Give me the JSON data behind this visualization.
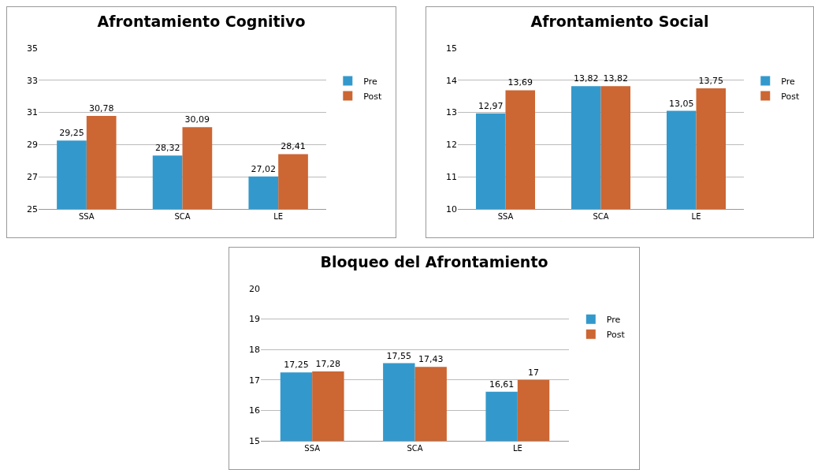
{
  "chart_data": [
    {
      "type": "bar",
      "title": "Afrontamiento Cognitivo",
      "categories": [
        "SSA",
        "SCA",
        "LE"
      ],
      "ylim": [
        25,
        35
      ],
      "yticks": [
        25,
        27,
        29,
        31,
        33,
        35
      ],
      "grid": "y",
      "legend": "right",
      "series": [
        {
          "name": "Pre",
          "color": "#3399cc",
          "values": [
            29.25,
            28.32,
            27.02
          ],
          "value_labels": [
            "29,25",
            "28,32",
            "27,02"
          ]
        },
        {
          "name": "Post",
          "color": "#cc6633",
          "values": [
            30.78,
            30.09,
            28.41
          ],
          "value_labels": [
            "30,78",
            "30,09",
            "28,41"
          ]
        }
      ]
    },
    {
      "type": "bar",
      "title": "Afrontamiento Social",
      "categories": [
        "SSA",
        "SCA",
        "LE"
      ],
      "ylim": [
        10,
        15
      ],
      "yticks": [
        10,
        11,
        12,
        13,
        14,
        15
      ],
      "grid": "y",
      "legend": "right",
      "series": [
        {
          "name": "Pre",
          "color": "#3399cc",
          "values": [
            12.97,
            13.82,
            13.05
          ],
          "value_labels": [
            "12,97",
            "13,82",
            "13,05"
          ]
        },
        {
          "name": "Post",
          "color": "#cc6633",
          "values": [
            13.69,
            13.82,
            13.75
          ],
          "value_labels": [
            "13,69",
            "13,82",
            "13,75"
          ]
        }
      ]
    },
    {
      "type": "bar",
      "title": "Bloqueo del Afrontamiento",
      "categories": [
        "SSA",
        "SCA",
        "LE"
      ],
      "ylim": [
        15,
        20
      ],
      "yticks": [
        15,
        16,
        17,
        18,
        19,
        20
      ],
      "grid": "y",
      "legend": "right",
      "series": [
        {
          "name": "Pre",
          "color": "#3399cc",
          "values": [
            17.25,
            17.55,
            16.61
          ],
          "value_labels": [
            "17,25",
            "17,55",
            "16,61"
          ]
        },
        {
          "name": "Post",
          "color": "#cc6633",
          "values": [
            17.28,
            17.43,
            17
          ],
          "value_labels": [
            "17,28",
            "17,43",
            "17"
          ]
        }
      ]
    }
  ]
}
